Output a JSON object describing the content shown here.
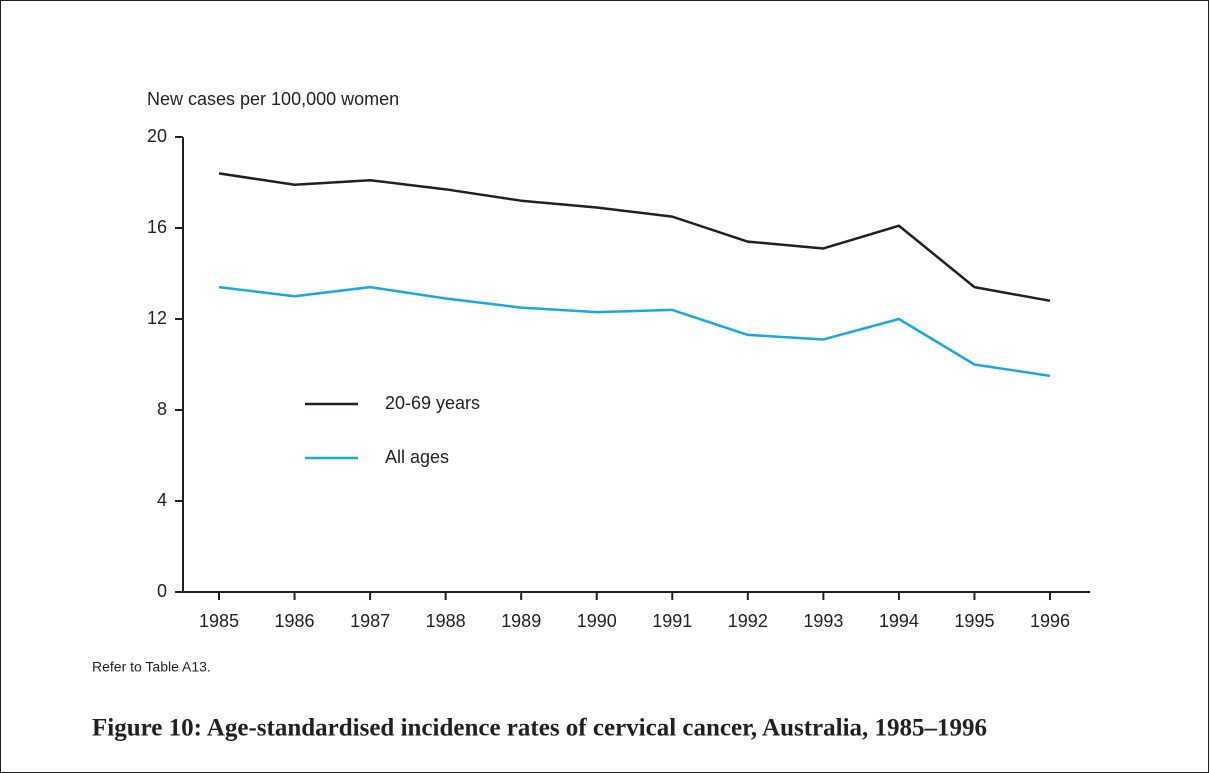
{
  "chart_data": {
    "type": "line",
    "title": "Figure 10: Age-standardised incidence rates of cervical cancer, Australia, 1985–1996",
    "y_label": "New cases per 100,000 women",
    "note": "Refer to Table A13.",
    "categories": [
      "1985",
      "1986",
      "1987",
      "1988",
      "1989",
      "1990",
      "1991",
      "1992",
      "1993",
      "1994",
      "1995",
      "1996"
    ],
    "series": [
      {
        "name": "20-69 years",
        "color": "#231f20",
        "values": [
          18.4,
          17.9,
          18.1,
          17.7,
          17.2,
          16.9,
          16.5,
          15.4,
          15.1,
          16.1,
          13.4,
          12.8
        ]
      },
      {
        "name": "All ages",
        "color": "#1aa7e0",
        "values": [
          13.4,
          13.0,
          13.4,
          12.9,
          12.5,
          12.3,
          12.4,
          11.3,
          11.1,
          12.0,
          10.0,
          9.5
        ]
      }
    ],
    "ylim": [
      0,
      20
    ],
    "yticks": [
      0,
      4,
      8,
      12,
      16,
      20
    ],
    "grid": false
  }
}
